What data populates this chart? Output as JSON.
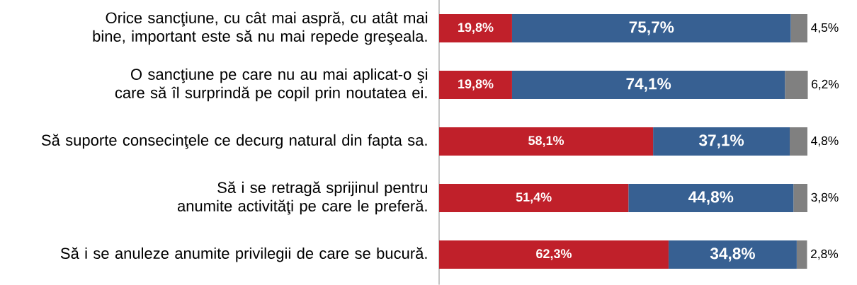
{
  "chart_data": {
    "type": "bar",
    "orientation": "horizontal",
    "stacked": true,
    "categories": [
      "Orice sancţiune, cu cât mai aspră, cu atât mai bine, important este să nu mai repede greşeala.",
      "O sancţiune pe care nu au mai aplicat-o şi care să îl surprindă pe copil prin noutatea ei.",
      "Să suporte consecinţele ce decurg natural din fapta sa.",
      "Să i se retragă sprijinul pentru anumite activităţi pe care le preferă.",
      "Să i se anuleze anumite privilegii de care se bucură."
    ],
    "series": [
      {
        "color": "#c0202a",
        "values": [
          19.8,
          19.8,
          58.1,
          51.4,
          62.3
        ],
        "value_labels": [
          "19,8%",
          "19,8%",
          "58,1%",
          "51,4%",
          "62,3%"
        ]
      },
      {
        "color": "#376092",
        "values": [
          75.7,
          74.1,
          37.1,
          44.8,
          34.8
        ],
        "value_labels": [
          "75,7%",
          "74,1%",
          "37,1%",
          "44,8%",
          "34,8%"
        ]
      },
      {
        "color": "#808080",
        "values": [
          4.5,
          6.2,
          4.8,
          3.8,
          2.8
        ],
        "value_labels": [
          "4,5%",
          "6,2%",
          "4,8%",
          "3,8%",
          "2,8%"
        ]
      }
    ],
    "xlim": [
      0,
      100
    ]
  }
}
